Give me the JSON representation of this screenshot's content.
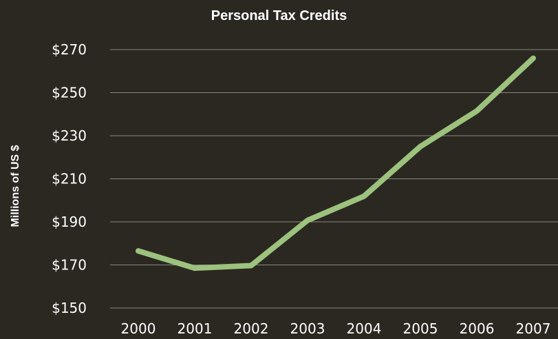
{
  "chart_data": {
    "type": "line",
    "title": "Personal Tax Credits",
    "xlabel": "",
    "ylabel": "Millions of US $",
    "categories": [
      "2000",
      "2001",
      "2002",
      "2003",
      "2004",
      "2005",
      "2006",
      "2007"
    ],
    "series": [
      {
        "values": [
          176.5,
          168.5,
          169.7,
          190.7,
          201.9,
          225.0,
          241.5,
          266.0
        ]
      }
    ],
    "ylim": [
      150,
      270
    ],
    "yticks": [
      150,
      170,
      190,
      210,
      230,
      250,
      270
    ],
    "ytick_labels": [
      "$150",
      "$170",
      "$190",
      "$210",
      "$230",
      "$250",
      "$270"
    ],
    "grid": true,
    "legend": "none",
    "colors": {
      "background": "#2b2822",
      "line": "#9cc27d",
      "grid": "#8a877f",
      "text": "#ffffff"
    }
  }
}
